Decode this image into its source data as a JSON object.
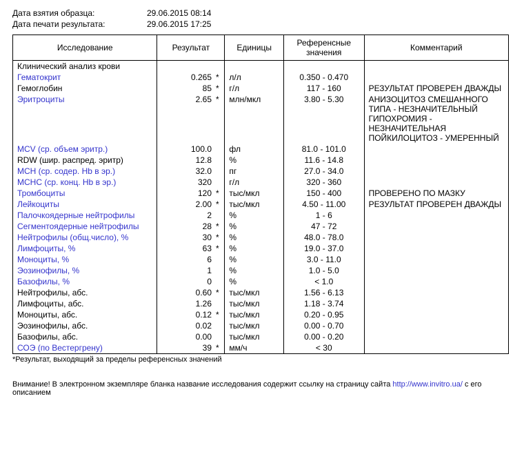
{
  "meta": {
    "sample_label": "Дата взятия образца:",
    "sample_value": "29.06.2015 08:14",
    "print_label": "Дата печати результата:",
    "print_value": "29.06.2015 17:25"
  },
  "columns": {
    "test": "Исследование",
    "result": "Результат",
    "unit": "Единицы",
    "ref": "Референсные значения",
    "comment": "Комментарий"
  },
  "rows": [
    {
      "test": "Клинический анализ крови",
      "link": false,
      "section": true,
      "result": "",
      "flag": "",
      "unit": "",
      "ref": "",
      "comment": ""
    },
    {
      "test": "Гематокрит",
      "link": true,
      "result": "0.265",
      "flag": "*",
      "unit": "л/л",
      "ref": "0.350 - 0.470",
      "comment": ""
    },
    {
      "test": "Гемоглобин",
      "link": false,
      "result": "85",
      "flag": "*",
      "unit": "г/л",
      "ref": "117 - 160",
      "comment": "РЕЗУЛЬТАТ ПРОВЕРЕН ДВАЖДЫ"
    },
    {
      "test": "Эритроциты",
      "link": true,
      "result": "2.65",
      "flag": "*",
      "unit": "млн/мкл",
      "ref": "3.80 - 5.30",
      "comment": "АНИЗОЦИТОЗ СМЕШАННОГО ТИПА - НЕЗНАЧИТЕЛЬНЫЙ\nГИПОХРОМИЯ - НЕЗНАЧИТЕЛЬНАЯ\nПОЙКИЛОЦИТОЗ - УМЕРЕННЫЙ"
    },
    {
      "test": "MCV (ср. объем эритр.)",
      "link": true,
      "result": "100.0",
      "flag": "",
      "unit": "фл",
      "ref": "81.0 - 101.0",
      "comment": ""
    },
    {
      "test": "RDW (шир. распред. эритр)",
      "link": false,
      "result": "12.8",
      "flag": "",
      "unit": "%",
      "ref": "11.6 - 14.8",
      "comment": ""
    },
    {
      "test": "MCH (ср. содер. Hb в эр.)",
      "link": true,
      "result": "32.0",
      "flag": "",
      "unit": "пг",
      "ref": "27.0 - 34.0",
      "comment": ""
    },
    {
      "test": "MCHC (ср. конц. Hb в эр.)",
      "link": true,
      "result": "320",
      "flag": "",
      "unit": "г/л",
      "ref": "320 - 360",
      "comment": ""
    },
    {
      "test": "Тромбоциты",
      "link": true,
      "result": "120",
      "flag": "*",
      "unit": "тыс/мкл",
      "ref": "150 - 400",
      "comment": "ПРОВЕРЕНО ПО МАЗКУ"
    },
    {
      "test": "Лейкоциты",
      "link": true,
      "result": "2.00",
      "flag": "*",
      "unit": "тыс/мкл",
      "ref": "4.50 - 11.00",
      "comment": "РЕЗУЛЬТАТ ПРОВЕРЕН ДВАЖДЫ"
    },
    {
      "test": "Палочкоядерные нейтрофилы",
      "link": true,
      "result": "2",
      "flag": "",
      "unit": "%",
      "ref": "1 - 6",
      "comment": ""
    },
    {
      "test": "Сегментоядерные нейтрофилы",
      "link": true,
      "result": "28",
      "flag": "*",
      "unit": "%",
      "ref": "47 - 72",
      "comment": ""
    },
    {
      "test": "Нейтрофилы (общ.число), %",
      "link": true,
      "result": "30",
      "flag": "*",
      "unit": "%",
      "ref": "48.0 - 78.0",
      "comment": ""
    },
    {
      "test": "Лимфоциты, %",
      "link": true,
      "result": "63",
      "flag": "*",
      "unit": "%",
      "ref": "19.0 - 37.0",
      "comment": ""
    },
    {
      "test": "Моноциты, %",
      "link": true,
      "result": "6",
      "flag": "",
      "unit": "%",
      "ref": "3.0 - 11.0",
      "comment": ""
    },
    {
      "test": "Эозинофилы, %",
      "link": true,
      "result": "1",
      "flag": "",
      "unit": "%",
      "ref": "1.0 - 5.0",
      "comment": ""
    },
    {
      "test": "Базофилы, %",
      "link": true,
      "result": "0",
      "flag": "",
      "unit": "%",
      "ref": "< 1.0",
      "comment": ""
    },
    {
      "test": "Нейтрофилы, абс.",
      "link": false,
      "result": "0.60",
      "flag": "*",
      "unit": "тыс/мкл",
      "ref": "1.56 - 6.13",
      "comment": ""
    },
    {
      "test": "Лимфоциты, абс.",
      "link": false,
      "result": "1.26",
      "flag": "",
      "unit": "тыс/мкл",
      "ref": "1.18 - 3.74",
      "comment": ""
    },
    {
      "test": "Моноциты, абс.",
      "link": false,
      "result": "0.12",
      "flag": "*",
      "unit": "тыс/мкл",
      "ref": "0.20 - 0.95",
      "comment": ""
    },
    {
      "test": "Эозинофилы, абс.",
      "link": false,
      "result": "0.02",
      "flag": "",
      "unit": "тыс/мкл",
      "ref": "0.00 - 0.70",
      "comment": ""
    },
    {
      "test": "Базофилы, абс.",
      "link": false,
      "result": "0.00",
      "flag": "",
      "unit": "тыс/мкл",
      "ref": "0.00 - 0.20",
      "comment": ""
    },
    {
      "test": "СОЭ (по Вестергрену)",
      "link": true,
      "result": "39",
      "flag": "*",
      "unit": "мм/ч",
      "ref": "< 30",
      "comment": ""
    }
  ],
  "footnote": "*Результат, выходящий за пределы референсных значений",
  "notice_pre": "Внимание! В электронном экземпляре бланка название исследования содержит ссылку на страницу сайта ",
  "notice_link": "http://www.invitro.ua/",
  "notice_post": " с его описанием"
}
